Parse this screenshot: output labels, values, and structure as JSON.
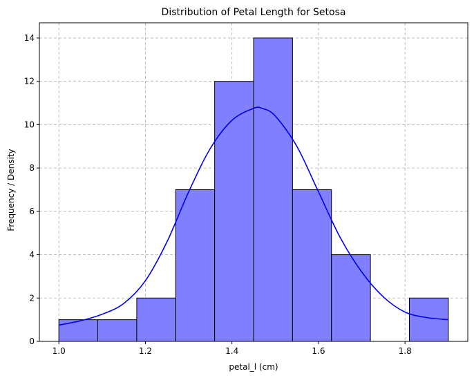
{
  "chart_data": {
    "type": "bar",
    "subtype": "histogram-with-kde",
    "title": "Distribution of Petal Length for Setosa",
    "xlabel": "petal_l (cm)",
    "ylabel": "Frequency / Density",
    "xlim": [
      0.955,
      1.945
    ],
    "ylim": [
      0,
      14.7
    ],
    "grid": true,
    "xticks": [
      1.0,
      1.2,
      1.4,
      1.6,
      1.8
    ],
    "xtick_labels": [
      "1.0",
      "1.2",
      "1.4",
      "1.6",
      "1.8"
    ],
    "yticks": [
      0,
      2,
      4,
      6,
      8,
      10,
      12,
      14
    ],
    "ytick_labels": [
      "0",
      "2",
      "4",
      "6",
      "8",
      "10",
      "12",
      "14"
    ],
    "bins": [
      {
        "x0": 1.0,
        "x1": 1.09,
        "count": 1
      },
      {
        "x0": 1.09,
        "x1": 1.18,
        "count": 1
      },
      {
        "x0": 1.18,
        "x1": 1.27,
        "count": 2
      },
      {
        "x0": 1.27,
        "x1": 1.36,
        "count": 7
      },
      {
        "x0": 1.36,
        "x1": 1.45,
        "count": 12
      },
      {
        "x0": 1.45,
        "x1": 1.54,
        "count": 14
      },
      {
        "x0": 1.54,
        "x1": 1.63,
        "count": 7
      },
      {
        "x0": 1.63,
        "x1": 1.72,
        "count": 4
      },
      {
        "x0": 1.72,
        "x1": 1.81,
        "count": 0
      },
      {
        "x0": 1.81,
        "x1": 1.9,
        "count": 2
      }
    ],
    "kde": {
      "x": [
        1.0,
        1.05,
        1.1,
        1.15,
        1.2,
        1.25,
        1.3,
        1.35,
        1.4,
        1.45,
        1.47,
        1.5,
        1.55,
        1.6,
        1.65,
        1.7,
        1.75,
        1.8,
        1.85,
        1.9
      ],
      "y": [
        0.75,
        0.95,
        1.25,
        1.75,
        2.8,
        4.6,
        6.9,
        8.9,
        10.2,
        10.75,
        10.75,
        10.4,
        9.0,
        6.9,
        4.8,
        3.2,
        2.05,
        1.35,
        1.1,
        1.0
      ]
    },
    "colors": {
      "bar_fill": "#8080ff",
      "bar_edge": "#000000",
      "kde_line": "#0000ee"
    }
  }
}
